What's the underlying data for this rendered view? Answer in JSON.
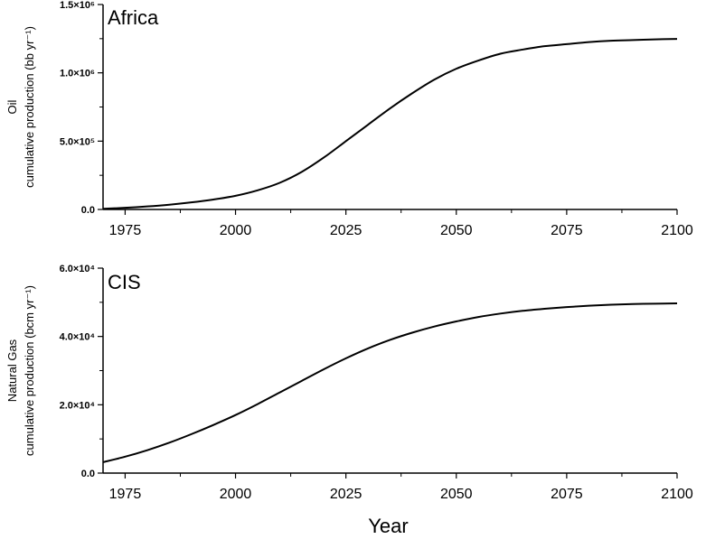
{
  "chart_data": [
    {
      "type": "line",
      "title": "Africa",
      "ylabel_lines": [
        "Oil",
        "cumulative production (bb yr⁻¹)"
      ],
      "xlabel": "",
      "xlim": [
        1970,
        2100
      ],
      "ylim": [
        0,
        1500000
      ],
      "x_ticks": [
        1975,
        2000,
        2025,
        2050,
        2075,
        2100
      ],
      "y_ticks": [
        0,
        500000,
        1000000,
        1500000
      ],
      "y_tick_labels": [
        "0.0",
        "5.0×10⁵",
        "1.0×10⁶",
        "1.5×10⁶"
      ],
      "grid": false,
      "series": [
        {
          "x": [
            1970,
            1975,
            1980,
            1985,
            1990,
            1995,
            2000,
            2005,
            2010,
            2015,
            2020,
            2025,
            2030,
            2035,
            2040,
            2045,
            2050,
            2055,
            2060,
            2065,
            2070,
            2075,
            2080,
            2085,
            2090,
            2095,
            2100
          ],
          "values": [
            5000,
            12000,
            22000,
            35000,
            52000,
            73000,
            100000,
            140000,
            195000,
            275000,
            380000,
            500000,
            620000,
            740000,
            850000,
            950000,
            1030000,
            1090000,
            1140000,
            1170000,
            1195000,
            1210000,
            1225000,
            1235000,
            1240000,
            1245000,
            1248000
          ],
          "color": "#000000"
        }
      ]
    },
    {
      "type": "line",
      "title": "CIS",
      "ylabel_lines": [
        "Natural Gas",
        "cumulative production (bcm yr⁻¹)"
      ],
      "xlabel": "Year",
      "xlim": [
        1970,
        2100
      ],
      "ylim": [
        0,
        60000
      ],
      "x_ticks": [
        1975,
        2000,
        2025,
        2050,
        2075,
        2100
      ],
      "y_ticks": [
        0,
        20000,
        40000,
        60000
      ],
      "y_tick_labels": [
        "0.0",
        "2.0×10⁴",
        "4.0×10⁴",
        "6.0×10⁴"
      ],
      "grid": false,
      "series": [
        {
          "x": [
            1970,
            1975,
            1980,
            1985,
            1990,
            1995,
            2000,
            2005,
            2010,
            2015,
            2020,
            2025,
            2030,
            2035,
            2040,
            2045,
            2050,
            2055,
            2060,
            2065,
            2070,
            2075,
            2080,
            2085,
            2090,
            2095,
            2100
          ],
          "values": [
            3200,
            4800,
            6700,
            8900,
            11400,
            14100,
            17000,
            20200,
            23600,
            27000,
            30400,
            33600,
            36500,
            39000,
            41100,
            42900,
            44400,
            45700,
            46700,
            47500,
            48100,
            48600,
            49000,
            49300,
            49500,
            49600,
            49700
          ],
          "color": "#000000"
        }
      ]
    }
  ]
}
